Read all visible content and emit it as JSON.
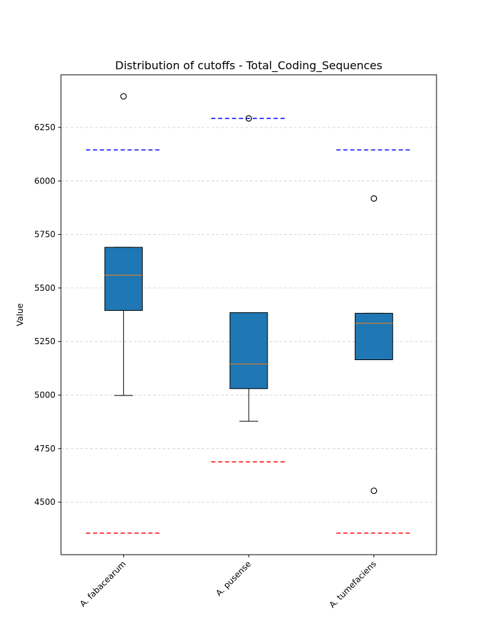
{
  "chart_data": {
    "type": "box",
    "title": "Distribution of cutoffs - Total_Coding_Sequences",
    "xlabel": "",
    "ylabel": "Value",
    "ylim": [
      4250,
      6500
    ],
    "yticks": [
      4500,
      4750,
      5000,
      5250,
      5500,
      5750,
      6000,
      6250
    ],
    "grid": "y-dashed",
    "colors": {
      "box_fill": "#1f77b4",
      "median": "#ff7f0e",
      "upper_cutoff": "#0000ff",
      "lower_cutoff": "#ff0000",
      "grid": "#cccccc"
    },
    "categories": [
      "A. fabacearum",
      "A. pusense",
      "A. tumefaciens"
    ],
    "boxes": [
      {
        "category": "A. fabacearum",
        "q1": 5395,
        "median": 5560,
        "q3": 5690,
        "whisker_low": 4998,
        "whisker_high": 5690,
        "outliers": [
          6395
        ],
        "upper_cutoff": 6145,
        "lower_cutoff": 4355
      },
      {
        "category": "A. pusense",
        "q1": 5030,
        "median": 5145,
        "q3": 5385,
        "whisker_low": 4878,
        "whisker_high": 5385,
        "outliers": [
          6292
        ],
        "upper_cutoff": 6292,
        "lower_cutoff": 4688
      },
      {
        "category": "A. tumefaciens",
        "q1": 5165,
        "median": 5335,
        "q3": 5382,
        "whisker_low": 5165,
        "whisker_high": 5382,
        "outliers": [
          5918,
          4553
        ],
        "upper_cutoff": 6145,
        "lower_cutoff": 4355
      }
    ]
  }
}
